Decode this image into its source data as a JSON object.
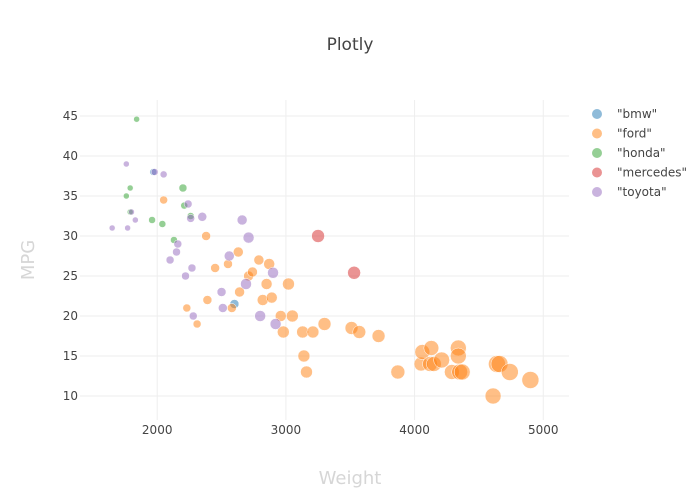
{
  "title": "Plotly",
  "colors": {
    "bmw": "#1f77b4",
    "ford": "#ff7f0e",
    "honda": "#2ca02c",
    "mercedes": "#d62728",
    "toyota": "#9467bd"
  },
  "chart_data": {
    "type": "scatter",
    "title": "Plotly",
    "xlabel": "Weight",
    "ylabel": "MPG",
    "xlim": [
      1400,
      5200
    ],
    "ylim": [
      7,
      47
    ],
    "xticks": [
      2000,
      3000,
      4000,
      5000
    ],
    "yticks": [
      10,
      15,
      20,
      25,
      30,
      35,
      40,
      45
    ],
    "grid": true,
    "legend_position": "top-right",
    "marker_opacity": 0.5,
    "series": [
      {
        "name": "\"bmw\"",
        "key": "bmw",
        "x": [
          1970,
          2600
        ],
        "y": [
          38,
          21.5
        ],
        "size": [
          6,
          8
        ]
      },
      {
        "name": "\"ford\"",
        "key": "ford",
        "x": [
          2050,
          2230,
          2310,
          2380,
          2390,
          2450,
          2550,
          2580,
          2630,
          2640,
          2710,
          2740,
          2790,
          2820,
          2850,
          2870,
          2890,
          2960,
          2980,
          3020,
          3050,
          3130,
          3140,
          3160,
          3210,
          3300,
          3510,
          3570,
          3720,
          3870,
          4050,
          4060,
          4120,
          4130,
          4150,
          4210,
          4290,
          4340,
          4340,
          4350,
          4370,
          4610,
          4640,
          4660,
          4740,
          4900
        ],
        "y": [
          34.5,
          21,
          19,
          30,
          22,
          26,
          26.5,
          21,
          28,
          23,
          25,
          25.5,
          27,
          22,
          24,
          26.5,
          22.3,
          20,
          18,
          24,
          20,
          18,
          15,
          13,
          18,
          19,
          18.5,
          18,
          17.5,
          13,
          14,
          15.5,
          14,
          16,
          14,
          14.5,
          13,
          16,
          15,
          13,
          13,
          10,
          14,
          14,
          13,
          12
        ],
        "size": [
          7,
          7,
          7,
          8,
          8,
          8,
          8,
          8,
          9,
          9,
          9,
          9,
          9,
          10,
          10,
          10,
          10,
          10,
          11,
          11,
          11,
          11,
          11,
          11,
          11,
          12,
          12,
          12,
          12,
          13,
          13,
          14,
          14,
          14,
          14,
          15,
          14,
          15,
          15,
          15,
          15,
          15,
          16,
          16,
          16,
          16
        ]
      },
      {
        "name": "\"honda\"",
        "key": "honda",
        "x": [
          1760,
          1790,
          1790,
          1840,
          1960,
          2040,
          2130,
          2200,
          2210,
          2260
        ],
        "y": [
          35,
          33,
          36,
          44.6,
          32,
          31.5,
          29.5,
          36,
          33.8,
          32.5
        ],
        "size": [
          5,
          5,
          5,
          5,
          6,
          6,
          6,
          7,
          6,
          6
        ]
      },
      {
        "name": "\"mercedes\"",
        "key": "mercedes",
        "x": [
          3250,
          3530
        ],
        "y": [
          30,
          25.4
        ],
        "size": [
          12,
          12
        ]
      },
      {
        "name": "\"toyota\"",
        "key": "toyota",
        "x": [
          1650,
          1760,
          1770,
          1800,
          1830,
          1980,
          2050,
          2100,
          2150,
          2160,
          2220,
          2240,
          2260,
          2270,
          2280,
          2350,
          2500,
          2510,
          2560,
          2660,
          2690,
          2710,
          2800,
          2900,
          2920
        ],
        "y": [
          31,
          39,
          31,
          33,
          32,
          38,
          37.7,
          27,
          28,
          29,
          25,
          34,
          32.2,
          26,
          20,
          32.4,
          23,
          21,
          27.5,
          32,
          24,
          29.8,
          20,
          25.4,
          19
        ],
        "size": [
          5,
          5,
          5,
          5,
          5,
          6,
          6,
          7,
          7,
          7,
          7,
          7,
          7,
          7,
          7,
          8,
          8,
          8,
          9,
          9,
          10,
          10,
          10,
          10,
          10
        ]
      }
    ]
  }
}
